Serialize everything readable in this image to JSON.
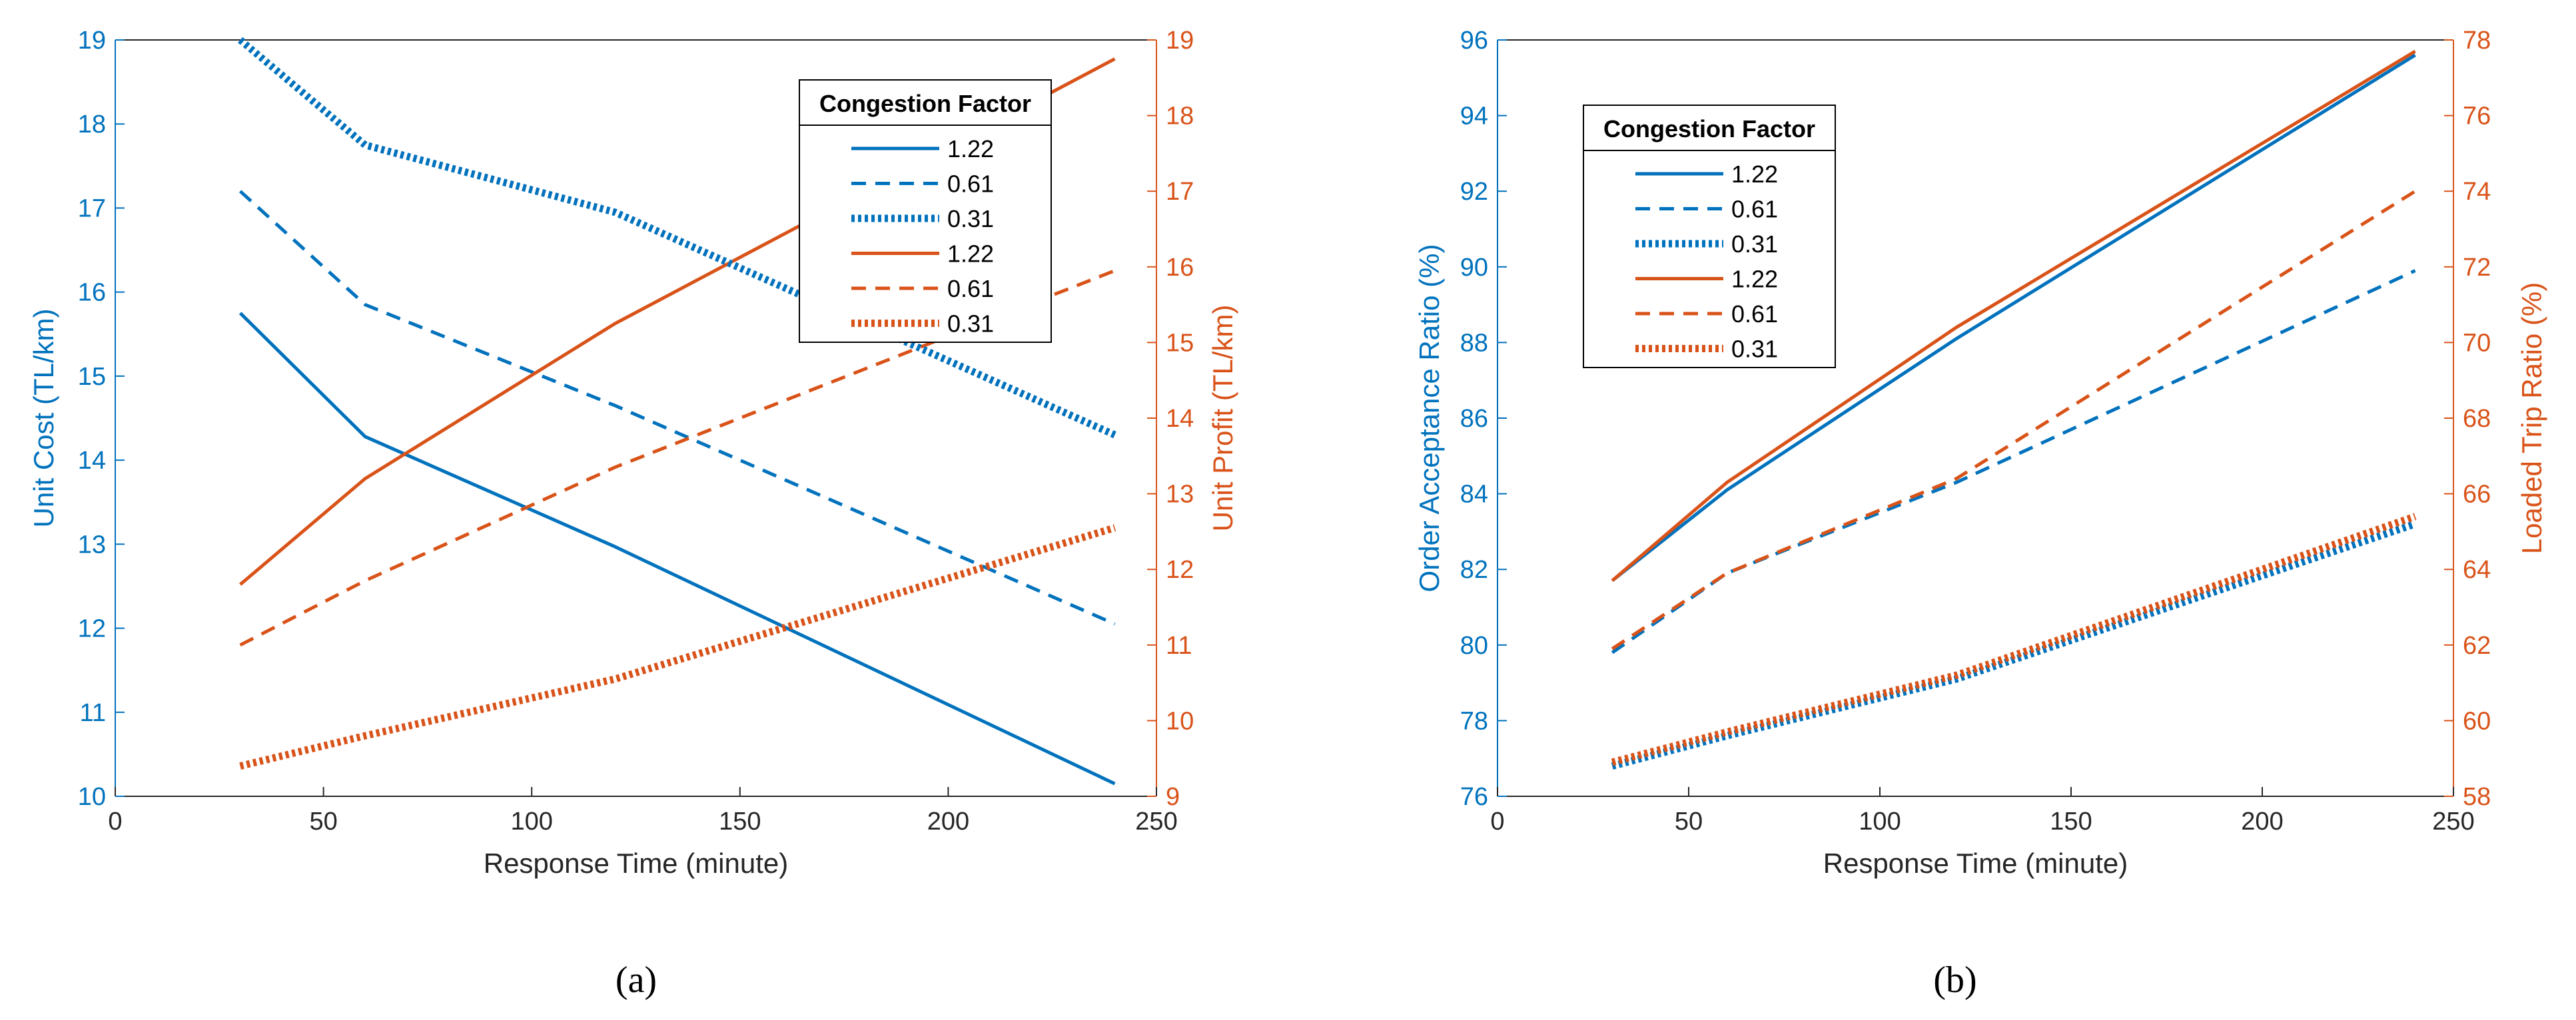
{
  "colors": {
    "left": "#0072BD",
    "right": "#D95319",
    "axis": "#262626"
  },
  "chart_data": [
    {
      "type": "line",
      "id": "a",
      "caption": "(a)",
      "xlabel": "Response Time (minute)",
      "ylabel_left": "Unit Cost (TL/km)",
      "ylabel_right": "Unit Profit (TL/km)",
      "xlim": [
        0,
        250
      ],
      "ylim_left": [
        10,
        19
      ],
      "ylim_right": [
        9,
        19
      ],
      "xticks": [
        0,
        50,
        100,
        150,
        200,
        250
      ],
      "yticks_left": [
        10,
        11,
        12,
        13,
        14,
        15,
        16,
        17,
        18,
        19
      ],
      "yticks_right": [
        9,
        10,
        11,
        12,
        13,
        14,
        15,
        16,
        17,
        18,
        19
      ],
      "x": [
        30,
        60,
        120,
        240
      ],
      "legend": {
        "title": "Congestion Factor",
        "location": "top-right"
      },
      "series": [
        {
          "name": "1.22",
          "axis": "left",
          "style": "solid",
          "values": [
            15.75,
            14.28,
            12.97,
            10.15
          ]
        },
        {
          "name": "0.61",
          "axis": "left",
          "style": "dashed",
          "values": [
            17.2,
            15.85,
            14.65,
            12.05
          ]
        },
        {
          "name": "0.31",
          "axis": "left",
          "style": "dotted",
          "values": [
            19.0,
            17.75,
            16.95,
            14.3
          ]
        },
        {
          "name": "1.22",
          "axis": "right",
          "style": "solid",
          "values": [
            11.8,
            13.2,
            15.25,
            18.75
          ]
        },
        {
          "name": "0.61",
          "axis": "right",
          "style": "dashed",
          "values": [
            11.0,
            11.85,
            13.35,
            15.95
          ]
        },
        {
          "name": "0.31",
          "axis": "right",
          "style": "dotted",
          "values": [
            9.4,
            9.8,
            10.55,
            12.55
          ]
        }
      ]
    },
    {
      "type": "line",
      "id": "b",
      "caption": "(b)",
      "xlabel": "Response Time (minute)",
      "ylabel_left": "Order Acceptance Ratio (%)",
      "ylabel_right": "Loaded Trip Ratio (%)",
      "xlim": [
        0,
        250
      ],
      "ylim_left": [
        76,
        96
      ],
      "ylim_right": [
        58,
        78
      ],
      "xticks": [
        0,
        50,
        100,
        150,
        200,
        250
      ],
      "yticks_left": [
        76,
        78,
        80,
        82,
        84,
        86,
        88,
        90,
        92,
        94,
        96
      ],
      "yticks_right": [
        58,
        60,
        62,
        64,
        66,
        68,
        70,
        72,
        74,
        76,
        78
      ],
      "x": [
        30,
        60,
        120,
        240
      ],
      "legend": {
        "title": "Congestion Factor",
        "location": "top-left"
      },
      "series": [
        {
          "name": "1.22",
          "axis": "left",
          "style": "solid",
          "values": [
            81.7,
            84.1,
            88.1,
            95.6
          ]
        },
        {
          "name": "0.61",
          "axis": "left",
          "style": "dashed",
          "values": [
            79.8,
            81.9,
            84.3,
            89.9
          ]
        },
        {
          "name": "0.31",
          "axis": "left",
          "style": "dotted",
          "values": [
            76.8,
            77.6,
            79.1,
            83.2
          ]
        },
        {
          "name": "1.22",
          "axis": "right",
          "style": "solid",
          "values": [
            63.7,
            66.3,
            70.4,
            77.7
          ]
        },
        {
          "name": "0.61",
          "axis": "right",
          "style": "dashed",
          "values": [
            61.9,
            63.9,
            66.4,
            74.0
          ]
        },
        {
          "name": "0.31",
          "axis": "right",
          "style": "dotted",
          "values": [
            58.9,
            59.7,
            61.2,
            65.4
          ]
        }
      ]
    }
  ]
}
